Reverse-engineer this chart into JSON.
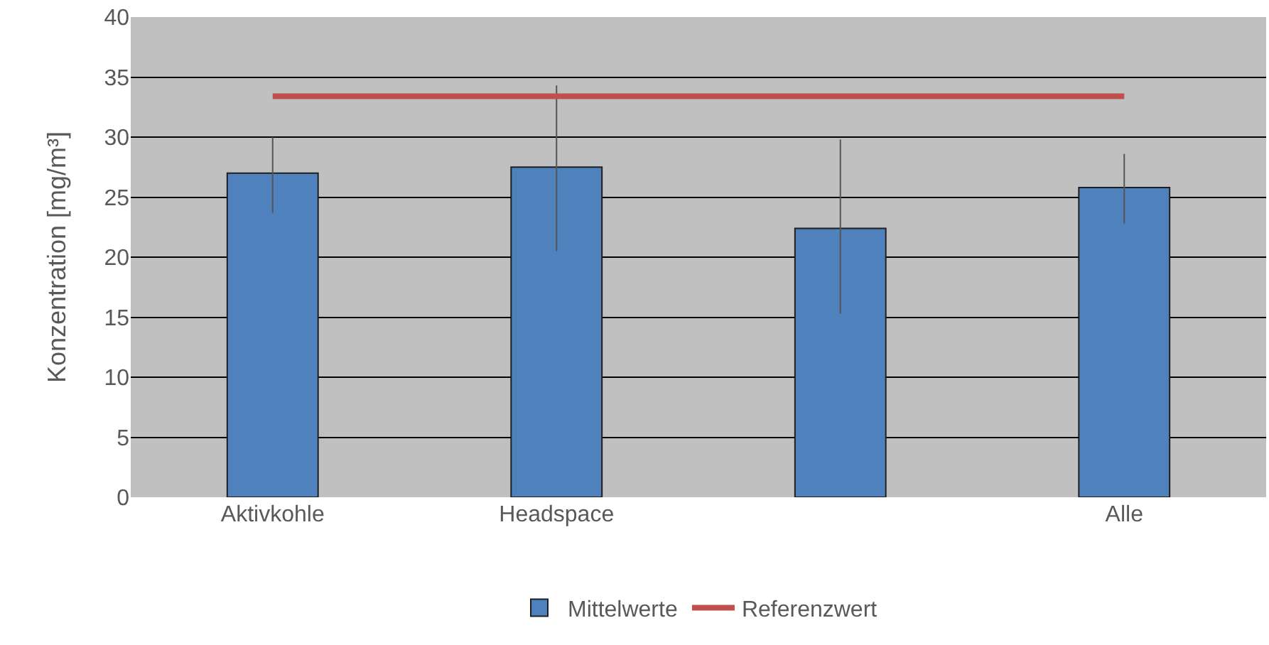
{
  "chart_data": {
    "type": "bar",
    "ylabel": "Konzentration [mg/m³]",
    "categories": [
      "Aktivkohle",
      "Headspace",
      null,
      "Alle"
    ],
    "series": [
      {
        "name": "Mittelwerte",
        "color": "#4f81bd",
        "values": [
          27,
          27.5,
          22.4,
          25.8
        ],
        "errors": [
          [
            23.7,
            30
          ],
          [
            20.5,
            34.3
          ],
          [
            15.3,
            29.8
          ],
          [
            22.8,
            28.6
          ]
        ]
      },
      {
        "name": "Referenzwert",
        "type": "line",
        "color": "#c0504d",
        "values": [
          33.4,
          33.4,
          33.4,
          33.4
        ]
      }
    ],
    "ylim": [
      0,
      40
    ],
    "yticks": [
      0,
      5,
      10,
      15,
      20,
      25,
      30,
      35,
      40
    ],
    "grid": "y",
    "legend": "bottom",
    "marker": "none",
    "line_style": "solid"
  }
}
